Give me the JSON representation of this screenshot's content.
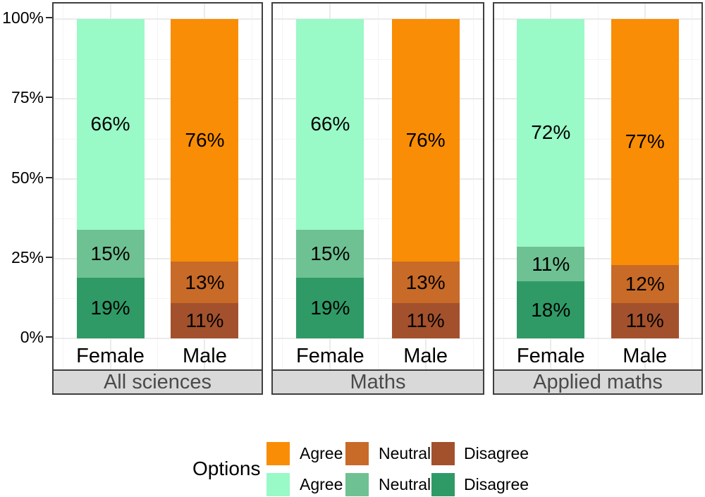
{
  "chart_data": {
    "type": "bar",
    "stacked": true,
    "orientation": "vertical",
    "unit": "%",
    "y_axis": {
      "lim": [
        0,
        100
      ],
      "tick_values": [
        0,
        25,
        50,
        75,
        100
      ],
      "tick_labels": [
        "0%",
        "25%",
        "50%",
        "75%",
        "100%"
      ],
      "minor_tick_values": [
        12.5,
        37.5,
        62.5,
        87.5
      ],
      "grid": true
    },
    "facets": [
      {
        "label": "All sciences",
        "categories": [
          "Female",
          "Male"
        ],
        "bars": [
          {
            "category": "Female",
            "series": "female",
            "segments": [
              {
                "option": "Disagree",
                "value": 19,
                "label": "19%"
              },
              {
                "option": "Neutral",
                "value": 15,
                "label": "15%"
              },
              {
                "option": "Agree",
                "value": 66,
                "label": "66%"
              }
            ]
          },
          {
            "category": "Male",
            "series": "male",
            "segments": [
              {
                "option": "Disagree",
                "value": 11,
                "label": "11%"
              },
              {
                "option": "Neutral",
                "value": 13,
                "label": "13%"
              },
              {
                "option": "Agree",
                "value": 76,
                "label": "76%"
              }
            ]
          }
        ]
      },
      {
        "label": "Maths",
        "categories": [
          "Female",
          "Male"
        ],
        "bars": [
          {
            "category": "Female",
            "series": "female",
            "segments": [
              {
                "option": "Disagree",
                "value": 19,
                "label": "19%"
              },
              {
                "option": "Neutral",
                "value": 15,
                "label": "15%"
              },
              {
                "option": "Agree",
                "value": 66,
                "label": "66%"
              }
            ]
          },
          {
            "category": "Male",
            "series": "male",
            "segments": [
              {
                "option": "Disagree",
                "value": 11,
                "label": "11%"
              },
              {
                "option": "Neutral",
                "value": 13,
                "label": "13%"
              },
              {
                "option": "Agree",
                "value": 76,
                "label": "76%"
              }
            ]
          }
        ]
      },
      {
        "label": "Applied maths",
        "categories": [
          "Female",
          "Male"
        ],
        "bars": [
          {
            "category": "Female",
            "series": "female",
            "segments": [
              {
                "option": "Disagree",
                "value": 18,
                "label": "18%"
              },
              {
                "option": "Neutral",
                "value": 11,
                "label": "11%"
              },
              {
                "option": "Agree",
                "value": 72,
                "label": "72%"
              }
            ]
          },
          {
            "category": "Male",
            "series": "male",
            "segments": [
              {
                "option": "Disagree",
                "value": 11,
                "label": "11%"
              },
              {
                "option": "Neutral",
                "value": 12,
                "label": "12%"
              },
              {
                "option": "Agree",
                "value": 77,
                "label": "77%"
              }
            ]
          }
        ]
      }
    ],
    "legend": {
      "title": "Options",
      "position": "bottom",
      "rows": [
        [
          {
            "label": "Agree",
            "color": "#F98D05"
          },
          {
            "label": "Neutral",
            "color": "#C86A28"
          },
          {
            "label": "Disagree",
            "color": "#A3512C"
          }
        ],
        [
          {
            "label": "Agree",
            "color": "#99F9C7"
          },
          {
            "label": "Neutral",
            "color": "#6EC192"
          },
          {
            "label": "Disagree",
            "color": "#2F9A66"
          }
        ]
      ]
    },
    "colors": {
      "female": {
        "Agree": "#99F9C7",
        "Neutral": "#6EC192",
        "Disagree": "#2F9A66"
      },
      "male": {
        "Agree": "#F98D05",
        "Neutral": "#C86A28",
        "Disagree": "#A3512C"
      },
      "strip_bg": "#D9D9D9",
      "strip_text": "#4A4A4A",
      "panel_border": "#3F3F3F",
      "grid_major": "#EBEBEB",
      "grid_minor": "#F4F4F4",
      "axis_text": "#000000"
    }
  }
}
